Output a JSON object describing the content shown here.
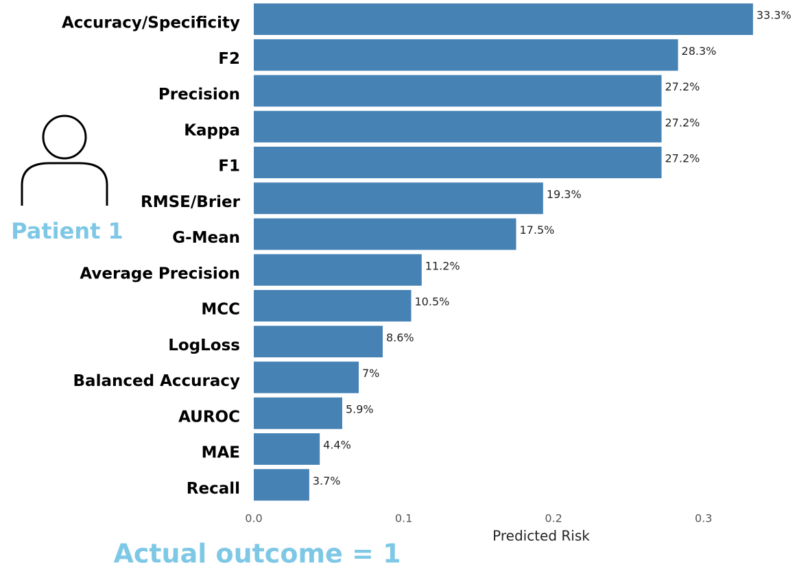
{
  "chart_data": {
    "type": "bar",
    "orientation": "horizontal",
    "categories": [
      "Accuracy/Specificity",
      "F2",
      "Precision",
      "Kappa",
      "F1",
      "RMSE/Brier",
      "G-Mean",
      "Average Precision",
      "MCC",
      "LogLoss",
      "Balanced Accuracy",
      "AUROC",
      "MAE",
      "Recall"
    ],
    "values": [
      0.333,
      0.283,
      0.272,
      0.272,
      0.272,
      0.193,
      0.175,
      0.112,
      0.105,
      0.086,
      0.07,
      0.059,
      0.044,
      0.037
    ],
    "value_labels": [
      "33.3%",
      "28.3%",
      "27.2%",
      "27.2%",
      "27.2%",
      "19.3%",
      "17.5%",
      "11.2%",
      "10.5%",
      "8.6%",
      "7%",
      "5.9%",
      "4.4%",
      "3.7%"
    ],
    "color": "#4682b4",
    "xlim": [
      0,
      0.35
    ],
    "xticks": [
      {
        "value": 0,
        "label": "0.0"
      },
      0.1,
      0.2,
      0.3
    ],
    "xlabel": "Predicted Risk",
    "grid": false
  },
  "annotations": {
    "patient": "Patient 1",
    "outcome": "Actual outcome = 1"
  }
}
